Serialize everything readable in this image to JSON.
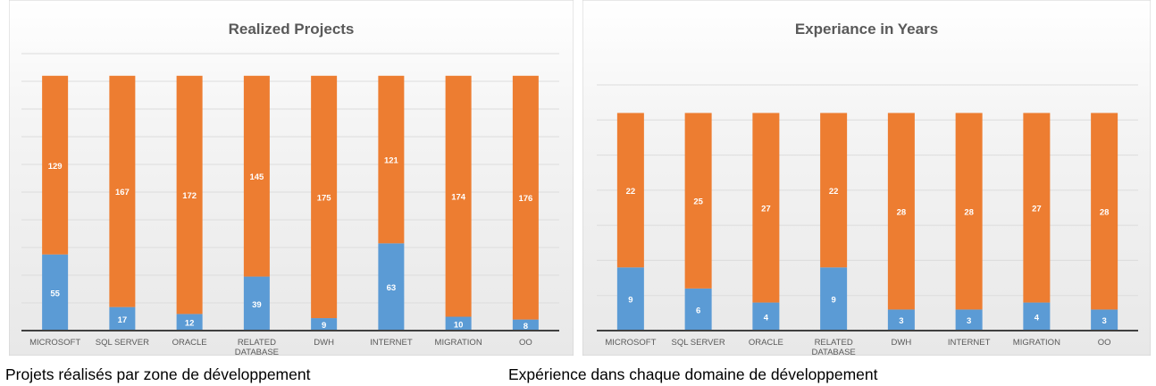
{
  "colors": {
    "base": "#5B9BD5",
    "remainder": "#ED7D31",
    "background_top": "#ffffff",
    "background_bottom": "#e8e8e8"
  },
  "captions": {
    "left": "Projets réalisés par zone de développement",
    "right": "Expérience dans chaque domaine de développement"
  },
  "chart_data": [
    {
      "type": "bar",
      "stacked": true,
      "title": "Realized Projects",
      "categories": [
        "MICROSOFT",
        "SQL SERVER",
        "ORACLE",
        "RELATED DATABASE",
        "DWH",
        "INTERNET",
        "MIGRATION",
        "OO"
      ],
      "series": [
        {
          "values": [
            55,
            17,
            12,
            39,
            9,
            63,
            10,
            8
          ],
          "color": "#5B9BD5"
        },
        {
          "values": [
            129,
            167,
            172,
            145,
            175,
            121,
            174,
            176
          ],
          "color": "#ED7D31"
        }
      ],
      "ylim": [
        0,
        200
      ],
      "grid": true,
      "legend": "none"
    },
    {
      "type": "bar",
      "stacked": true,
      "title": "Experiance in Years",
      "categories": [
        "MICROSOFT",
        "SQL SERVER",
        "ORACLE",
        "RELATED DATABASE",
        "DWH",
        "INTERNET",
        "MIGRATION",
        "OO"
      ],
      "series": [
        {
          "values": [
            9,
            6,
            4,
            9,
            3,
            3,
            4,
            3
          ],
          "color": "#5B9BD5"
        },
        {
          "values": [
            22,
            25,
            27,
            22,
            28,
            28,
            27,
            28
          ],
          "color": "#ED7D31"
        }
      ],
      "ylim": [
        0,
        35
      ],
      "grid": true,
      "legend": "none"
    }
  ]
}
